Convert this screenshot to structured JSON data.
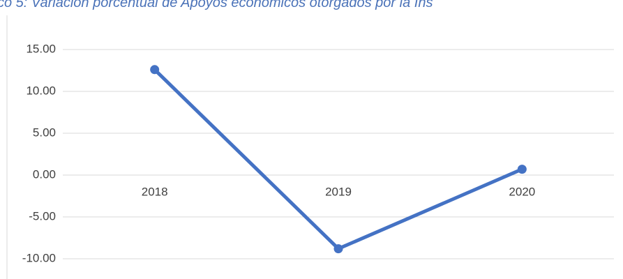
{
  "chart_data": {
    "type": "line",
    "title": "co 5: Variación porcentual de Apoyos económicos otorgados por la Ins",
    "categories": [
      "2018",
      "2019",
      "2020"
    ],
    "series": [
      {
        "name": "Variación porcentual",
        "color": "#4472c4",
        "values": [
          12.6,
          -8.8,
          0.7
        ]
      }
    ],
    "ylim": [
      -12,
      17
    ],
    "yticks": [
      {
        "value": -10,
        "label": "-10.00"
      },
      {
        "value": -5,
        "label": "-5.00"
      },
      {
        "value": 0,
        "label": "0.00"
      },
      {
        "value": 5,
        "label": "5.00"
      },
      {
        "value": 10,
        "label": "10.00"
      },
      {
        "value": 15,
        "label": "15.00"
      }
    ],
    "grid": true
  }
}
